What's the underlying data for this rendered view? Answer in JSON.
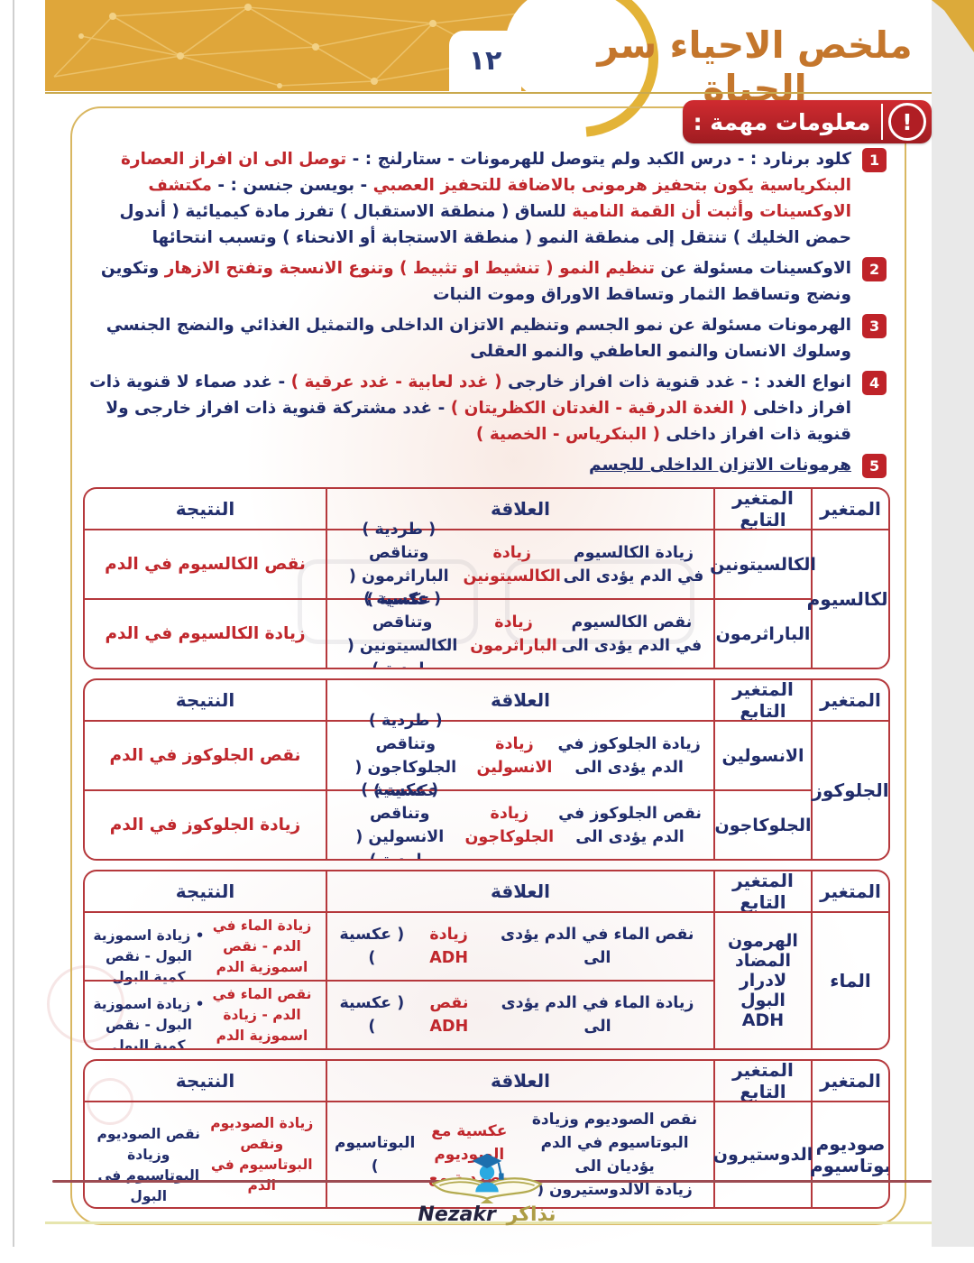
{
  "page": {
    "title": "ملخص الاحياء سر الحياة",
    "number": "١٢",
    "badge_label": "معلومات مهمة :",
    "alert_glyph": "!"
  },
  "notes": [
    {
      "num": "1",
      "segments": [
        {
          "t": "كلود برنارد : - درس الكبد ولم يتوصل للهرمونات - ستارلنج : - ",
          "c": "navy"
        },
        {
          "t": "توصل الى ان افراز العصارة البنكرياسية يكون بتحفيز هرمونى بالاضافة للتحفيز العصبي ",
          "c": "red"
        },
        {
          "t": "- بويسن جنسن : - ",
          "c": "navy"
        },
        {
          "t": "مكتشف الاوكسينات وأثبت أن القمة النامية ",
          "c": "red"
        },
        {
          "t": "للساق ( منطقة الاستقبال ) تفرز مادة كيميائية ( أندول حمض الخليك ) تنتقل إلى منطقة النمو ( منطقة الاستجابة أو الانحناء ) وتسبب انتحائها",
          "c": "navy"
        }
      ]
    },
    {
      "num": "2",
      "segments": [
        {
          "t": "الاوكسينات مسئولة عن ",
          "c": "navy"
        },
        {
          "t": "تنظيم النمو ( تنشيط او تثبيط ) وتنوع الانسجة وتفتح الازهار ",
          "c": "red"
        },
        {
          "t": "وتكوين ونضج وتساقط الثمار وتساقط الاوراق وموت النبات",
          "c": "navy"
        }
      ]
    },
    {
      "num": "3",
      "segments": [
        {
          "t": "الهرمونات مسئولة عن نمو الجسم وتنظيم الاتزان الداخلى والتمثيل الغذائي والنضج الجنسي وسلوك الانسان والنمو العاطفي والنمو العقلى",
          "c": "navy"
        }
      ]
    },
    {
      "num": "4",
      "segments": [
        {
          "t": "انواع الغدد : - غدد قنوية ذات افراز خارجى ",
          "c": "navy"
        },
        {
          "t": "( غدد لعابية - غدد عرقية )",
          "c": "red"
        },
        {
          "t": " - غدد صماء لا قنوية ذات افراز داخلى ",
          "c": "navy"
        },
        {
          "t": "( الغدة الدرقية - الغدتان الكظريتان )",
          "c": "red"
        },
        {
          "t": " - غدد مشتركة قنوية ذات افراز خارجى ولا قنوية ذات افراز داخلى ",
          "c": "navy"
        },
        {
          "t": "( البنكرياس - الخصية )",
          "c": "red"
        }
      ]
    },
    {
      "num": "5",
      "segments": [
        {
          "t": "هرمونات الاتزان الداخلى للجسم",
          "c": "navy",
          "u": true
        }
      ]
    }
  ],
  "table_headers": {
    "variable": "المتغير",
    "dependent": "المتغير التابع",
    "relation": "العلاقة",
    "result": "النتيجة"
  },
  "tables": [
    {
      "variable": "الكالسيوم",
      "rows": [
        {
          "dependent": "الكالسيتونين",
          "relation": [
            {
              "t": "زيادة الكالسيوم في الدم يؤدى الى ",
              "c": "navy"
            },
            {
              "t": "زيادة الكالسيتونين",
              "c": "red"
            },
            {
              "t": " ( طردية )\nوتناقص الباراثرمون ( عكسية )",
              "c": "navy"
            }
          ],
          "result": [
            {
              "t": "نقص الكالسيوم في الدم",
              "c": "red"
            }
          ]
        },
        {
          "dependent": "الباراثرمون",
          "relation": [
            {
              "t": "نقص الكالسيوم في الدم يؤدى الى ",
              "c": "navy"
            },
            {
              "t": "زيادة الباراثرمون",
              "c": "red"
            },
            {
              "t": " ( عكسية )\nوتناقص الكالسيتونين ( طردية )",
              "c": "navy"
            }
          ],
          "result": [
            {
              "t": "زيادة الكالسيوم في الدم",
              "c": "red"
            }
          ]
        }
      ]
    },
    {
      "variable": "الجلوكوز",
      "rows": [
        {
          "dependent": "الانسولين",
          "relation": [
            {
              "t": "زيادة الجلوكوز في الدم يؤدى الى ",
              "c": "navy"
            },
            {
              "t": "زيادة الانسولين",
              "c": "red"
            },
            {
              "t": " ( طردية )\nوتناقص الجلوكاجون ( عكسية )",
              "c": "navy"
            }
          ],
          "result": [
            {
              "t": "نقص الجلوكوز في الدم",
              "c": "red"
            }
          ]
        },
        {
          "dependent": "الجلوكاجون",
          "relation": [
            {
              "t": "نقص الجلوكوز في الدم يؤدى الى ",
              "c": "navy"
            },
            {
              "t": "زيادة الجلوكاجون",
              "c": "red"
            },
            {
              "t": " ( عكسية )\nوتناقص الانسولين ( طردية )",
              "c": "navy"
            }
          ],
          "result": [
            {
              "t": "زيادة الجلوكوز في الدم",
              "c": "red"
            }
          ]
        }
      ]
    },
    {
      "variable": "الماء",
      "dependent_span": "الهرمون\nالمضاد لادرار\nالبول ADH",
      "rows": [
        {
          "relation": [
            {
              "t": "نقص الماء في الدم يؤدى الى ",
              "c": "navy"
            },
            {
              "t": "زيادة ADH",
              "c": "red"
            },
            {
              "t": " ( عكسية )",
              "c": "navy"
            }
          ],
          "result": [
            {
              "t": "زيادة الماء في الدم - نقص اسموزية الدم",
              "c": "red"
            },
            {
              "t": "\n• زيادة اسموزية البول - نقص كمية البول",
              "c": "navy"
            }
          ]
        },
        {
          "relation": [
            {
              "t": "زيادة الماء في الدم يؤدى الى ",
              "c": "navy"
            },
            {
              "t": "نقص ADH",
              "c": "red"
            },
            {
              "t": " ( عكسية )",
              "c": "navy"
            }
          ],
          "result": [
            {
              "t": "نقص الماء في الدم - زيادة اسموزية الدم",
              "c": "red"
            },
            {
              "t": "\n• زيادة اسموزية البول - نقص كمية البول",
              "c": "navy"
            }
          ]
        }
      ]
    },
    {
      "variable": "صوديوم\nبوتاسيوم",
      "rows": [
        {
          "dependent": "الدوستيرون",
          "relation": [
            {
              "t": "نقص الصوديوم وزيادة البوتاسيوم في الدم يؤديان الى\nزيادة الالدوستيرون ( ",
              "c": "navy"
            },
            {
              "t": "عكسية مع الصوديوم وطردية مع ",
              "c": "red"
            },
            {
              "t": "البوتاسيوم )",
              "c": "navy"
            }
          ],
          "result": [
            {
              "t": "زيادة الصوديوم ونقص\nالبوتاسيوم في الدم",
              "c": "red"
            },
            {
              "t": "\nنقص الصوديوم وزيادة\nالبوتاسيوم فى البول",
              "c": "navy"
            }
          ]
        }
      ]
    }
  ],
  "footer": {
    "brand_ar": "نذاكر",
    "brand_en": "Nezakr"
  }
}
